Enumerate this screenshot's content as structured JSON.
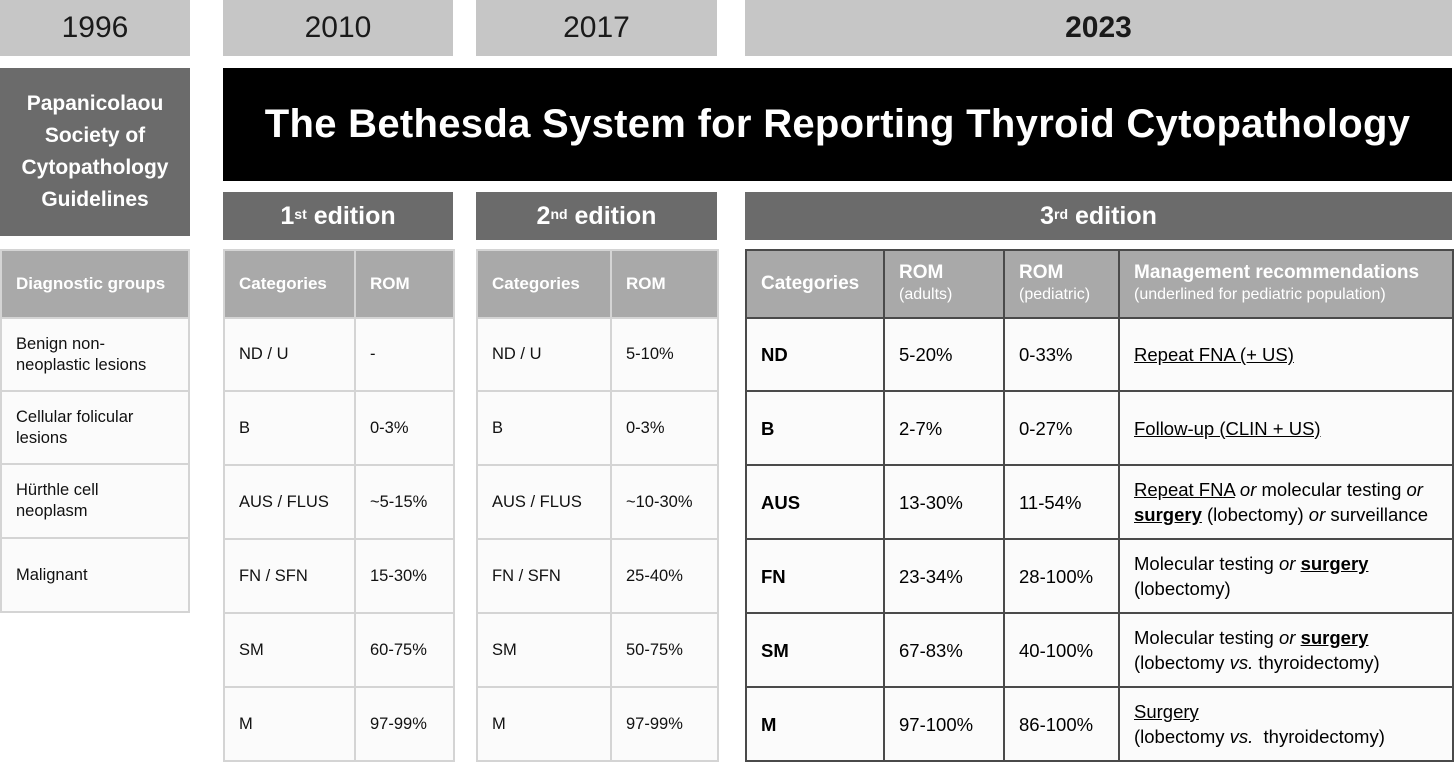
{
  "years": [
    "1996",
    "2010",
    "2017",
    "2023"
  ],
  "organization": [
    "Papanicolaou",
    "Society of",
    "Cytopathology",
    "Guidelines"
  ],
  "title": "The Bethesda System for Reporting Thyroid Cytopathology",
  "editions": [
    {
      "num": "1",
      "sup": "st",
      "label": "edition"
    },
    {
      "num": "2",
      "sup": "nd",
      "label": "edition"
    },
    {
      "num": "3",
      "sup": "rd",
      "label": "edition"
    }
  ],
  "diagnostic_groups": {
    "header": "Diagnostic groups",
    "rows": [
      [
        "Benign non-",
        "neoplastic lesions"
      ],
      [
        "Cellular folicular",
        "lesions"
      ],
      [
        "Hürthle cell",
        "neoplasm"
      ],
      [
        "Malignant"
      ]
    ]
  },
  "edition1_table": {
    "headers": [
      "Categories",
      "ROM"
    ],
    "rows": [
      [
        "ND / U",
        "-"
      ],
      [
        "B",
        "0-3%"
      ],
      [
        "AUS / FLUS",
        "~5-15%"
      ],
      [
        "FN / SFN",
        "15-30%"
      ],
      [
        "SM",
        "60-75%"
      ],
      [
        "M",
        "97-99%"
      ]
    ]
  },
  "edition2_table": {
    "headers": [
      "Categories",
      "ROM"
    ],
    "rows": [
      [
        "ND / U",
        "5-10%"
      ],
      [
        "B",
        "0-3%"
      ],
      [
        "AUS / FLUS",
        "~10-30%"
      ],
      [
        "FN / SFN",
        "25-40%"
      ],
      [
        "SM",
        "50-75%"
      ],
      [
        "M",
        "97-99%"
      ]
    ]
  },
  "edition3_table": {
    "headers": [
      {
        "main": "Categories",
        "sub": ""
      },
      {
        "main": "ROM",
        "sub": "(adults)"
      },
      {
        "main": "ROM",
        "sub": "(pediatric)"
      },
      {
        "main": "Management recommendations",
        "sub": "(underlined for pediatric population)"
      }
    ],
    "rows": [
      {
        "cat": "ND",
        "adult": "5-20%",
        "ped": "0-33%",
        "mgmt": [
          [
            {
              "t": "Repeat FNA (+ US)",
              "s": "u"
            }
          ]
        ]
      },
      {
        "cat": "B",
        "adult": "2-7%",
        "ped": "0-27%",
        "mgmt": [
          [
            {
              "t": "Follow-up (CLIN + US)",
              "s": "u"
            }
          ]
        ]
      },
      {
        "cat": "AUS",
        "adult": "13-30%",
        "ped": "11-54%",
        "mgmt": [
          [
            {
              "t": "Repeat FNA",
              "s": "u"
            },
            {
              "t": " ",
              "s": ""
            },
            {
              "t": "or",
              "s": "i"
            },
            {
              "t": " molecular testing ",
              "s": ""
            },
            {
              "t": "or",
              "s": "i"
            }
          ],
          [
            {
              "t": "surgery",
              "s": "ub"
            },
            {
              "t": " (lobectomy) ",
              "s": ""
            },
            {
              "t": "or",
              "s": "i"
            },
            {
              "t": " surveillance",
              "s": ""
            }
          ]
        ]
      },
      {
        "cat": "FN",
        "adult": "23-34%",
        "ped": "28-100%",
        "mgmt": [
          [
            {
              "t": "Molecular testing ",
              "s": ""
            },
            {
              "t": "or",
              "s": "i"
            },
            {
              "t": " ",
              "s": ""
            },
            {
              "t": "surgery",
              "s": "ub"
            }
          ],
          [
            {
              "t": "(lobectomy)",
              "s": ""
            }
          ]
        ]
      },
      {
        "cat": "SM",
        "adult": "67-83%",
        "ped": "40-100%",
        "mgmt": [
          [
            {
              "t": "Molecular testing ",
              "s": ""
            },
            {
              "t": "or",
              "s": "i"
            },
            {
              "t": " ",
              "s": ""
            },
            {
              "t": "surgery",
              "s": "ub"
            }
          ],
          [
            {
              "t": "(lobectomy ",
              "s": ""
            },
            {
              "t": "vs.",
              "s": "i"
            },
            {
              "t": " thyroidectomy)",
              "s": ""
            }
          ]
        ]
      },
      {
        "cat": "M",
        "adult": "97-100%",
        "ped": "86-100%",
        "mgmt": [
          [
            {
              "t": "Surgery",
              "s": "u"
            }
          ],
          [
            {
              "t": "(lobectomy ",
              "s": ""
            },
            {
              "t": "vs.",
              "s": "i"
            },
            {
              "t": "  thyroidectomy)",
              "s": ""
            }
          ]
        ]
      }
    ]
  }
}
